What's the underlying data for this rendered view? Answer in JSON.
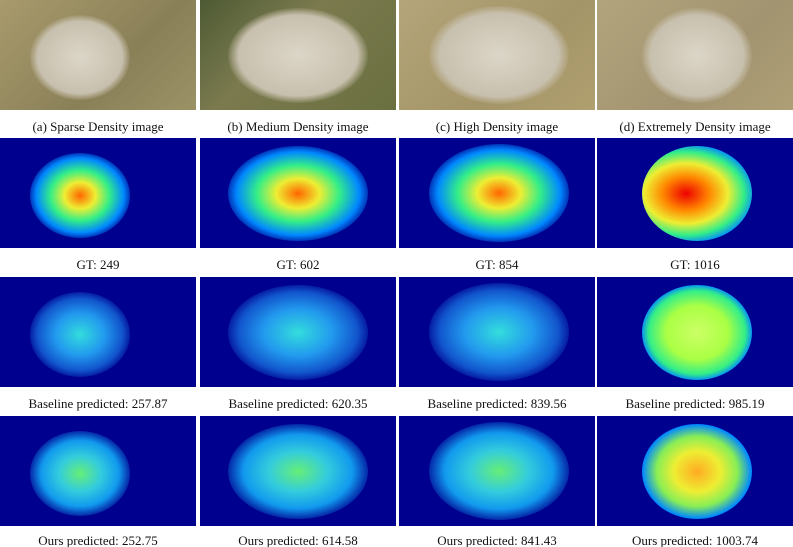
{
  "rows": [
    {
      "captions": [
        "(a) Sparse Density image",
        "(b) Medium Density image",
        "(c) High Density image",
        "(d) Extremely Density image"
      ]
    },
    {
      "captions": [
        "GT: 249",
        "GT: 602",
        "GT: 854",
        "GT: 1016"
      ]
    },
    {
      "captions": [
        "Baseline predicted: 257.87",
        "Baseline predicted: 620.35",
        "Baseline predicted: 839.56",
        "Baseline predicted: 985.19"
      ]
    },
    {
      "captions": [
        "Ours predicted: 252.75",
        "Ours predicted: 614.58",
        "Ours predicted: 841.43",
        "Ours predicted: 1003.74"
      ]
    }
  ]
}
